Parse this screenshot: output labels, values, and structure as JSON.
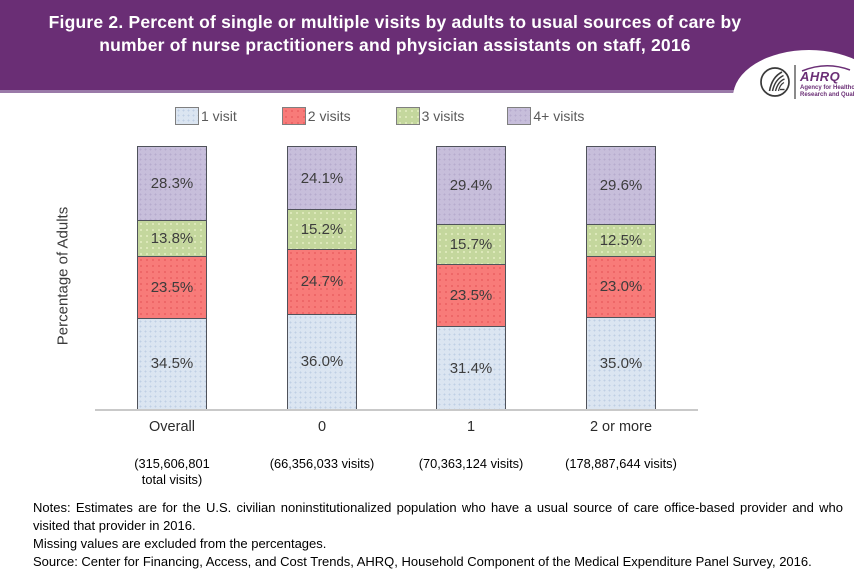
{
  "header": {
    "title": "Figure 2. Percent of single or multiple visits by adults to usual sources of care by number of nurse practitioners and physician assistants on staff, 2016",
    "logo": {
      "org": "AHRQ",
      "tagline": "Agency for Healthcare Research and Quality"
    }
  },
  "colors": {
    "header_bg": "#6a2e75",
    "header_edge": "#9a79a8",
    "bar_border": "#4f525a",
    "baseline": "#c9c9c9",
    "legend_text": "#595959",
    "logo_purple": "#6b2f76"
  },
  "chart_data": {
    "type": "bar",
    "stacked": true,
    "title": "Figure 2. Percent of single or multiple visits by adults to usual sources of care by number of nurse practitioners and physician assistants on staff, 2016",
    "xlabel": "",
    "ylabel": "Percentage of Adults",
    "ylim": [
      0,
      100
    ],
    "grid": false,
    "legend_position": "top",
    "value_suffix": "%",
    "categories": [
      "Overall",
      "0",
      "1",
      "2 or more"
    ],
    "category_sublabels": [
      "(315,606,801\ntotal visits)",
      "(66,356,033 visits)",
      "(70,363,124 visits)",
      "(178,887,644 visits)"
    ],
    "series": [
      {
        "name": "1 visit",
        "color": "#dbe5f1",
        "values": [
          34.5,
          36.0,
          31.4,
          35.0
        ]
      },
      {
        "name": "2 visits",
        "color": "#f87b79",
        "values": [
          23.5,
          24.7,
          23.5,
          23.0
        ]
      },
      {
        "name": "3 visits",
        "color": "#c4d79d",
        "values": [
          13.8,
          15.2,
          15.7,
          12.5
        ]
      },
      {
        "name": "4+ visits",
        "color": "#c7bedb",
        "values": [
          28.3,
          24.1,
          29.4,
          29.6
        ]
      }
    ]
  },
  "notes": {
    "note1": "Notes: Estimates are for the U.S. civilian noninstitutionalized population who have a usual source of care office-based provider and who visited that provider in 2016.",
    "note2": "Missing values are excluded from the percentages.",
    "source": "Source: Center for Financing, Access, and Cost Trends, AHRQ, Household Component of the Medical Expenditure Panel Survey, 2016."
  }
}
